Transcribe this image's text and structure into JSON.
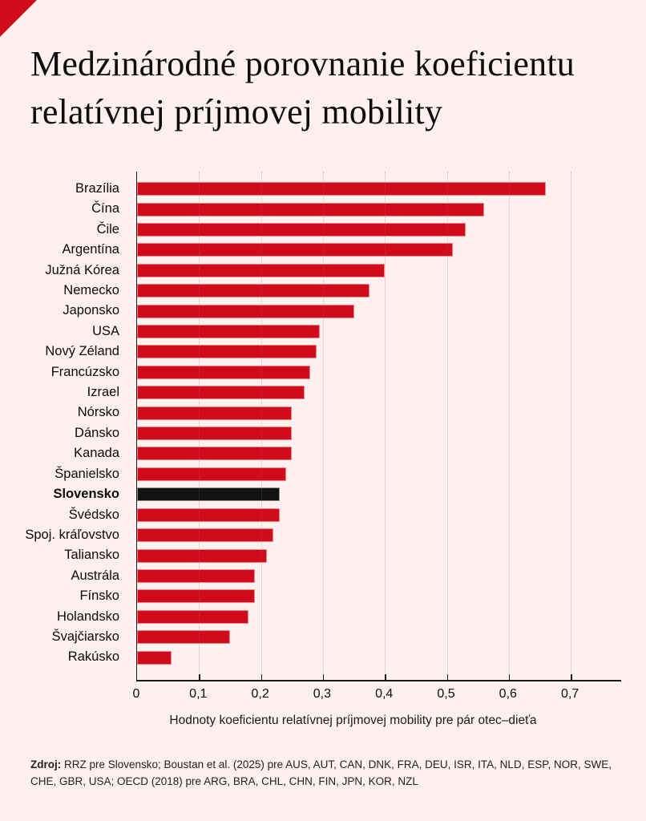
{
  "background_color": "#fdf0ee",
  "accent_red": "#d20b1c",
  "brand": {
    "corner_mark": "red-triangle"
  },
  "title": {
    "text": "Medzinárodné porovnanie koeficientu relatívnej príjmovej mobility"
  },
  "chart_data": {
    "type": "bar",
    "orientation": "horizontal",
    "title": "Medzinárodné porovnanie koeficientu relatívnej príjmovej mobility",
    "xlabel": "Hodnoty koeficientu relatívnej príjmovej mobility pre pár otec–dieťa",
    "xlim": [
      0,
      0.78
    ],
    "x_tick_labels": [
      "0",
      "0,1",
      "0,2",
      "0,3",
      "0,4",
      "0,5",
      "0,6",
      "0,7"
    ],
    "grid": "vertical-dotted",
    "legend": "none",
    "bar_color": "#d20b1c",
    "highlight_bar_color": "#121212",
    "highlight_category": "Slovensko",
    "categories": [
      "Brazília",
      "Čína",
      "Čile",
      "Argentína",
      "Južná Kórea",
      "Nemecko",
      "Japonsko",
      "USA",
      "Nový Zéland",
      "Francúzsko",
      "Izrael",
      "Nórsko",
      "Dánsko",
      "Kanada",
      "Španielsko",
      "Slovensko",
      "Švédsko",
      "Spoj. kráľovstvo",
      "Taliansko",
      "Austrála",
      "Fínsko",
      "Holandsko",
      "Švajčiarsko",
      "Rakúsko"
    ],
    "values": [
      0.66,
      0.56,
      0.53,
      0.51,
      0.4,
      0.375,
      0.35,
      0.295,
      0.29,
      0.28,
      0.27,
      0.25,
      0.25,
      0.25,
      0.24,
      0.23,
      0.23,
      0.22,
      0.21,
      0.19,
      0.19,
      0.18,
      0.15,
      0.055
    ]
  },
  "footer": {
    "source_label": "Zdroj:",
    "source_text": " RRZ pre Slovensko; Boustan et al. (2025) pre AUS, AUT, CAN, DNK, FRA, DEU, ISR, ITA, NLD, ESP, NOR, SWE, CHE, GBR, USA; OECD (2018) pre ARG, BRA, CHL, CHN, FIN, JPN, KOR, NZL"
  }
}
